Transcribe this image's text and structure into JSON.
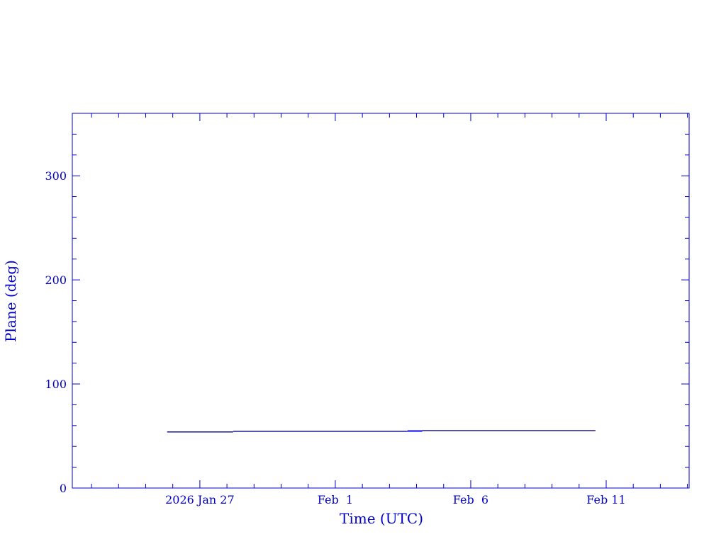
{
  "chart_data": {
    "type": "line",
    "xlabel": "Time (UTC)",
    "ylabel": "Plane (deg)",
    "xlim": [
      "2026-01-22T07:00",
      "2026-02-14T01:30"
    ],
    "ylim": [
      0,
      360
    ],
    "x_ticks": [
      {
        "date": "2026-01-27",
        "label": "2026 Jan 27"
      },
      {
        "date": "2026-02-01",
        "label": "Feb  1"
      },
      {
        "date": "2026-02-06",
        "label": "Feb  6"
      },
      {
        "date": "2026-02-11",
        "label": "Feb 11"
      }
    ],
    "y_ticks": [
      0,
      100,
      200,
      300
    ],
    "grid": false,
    "colors": {
      "axis": "#0000c8",
      "line": "#00008b",
      "highlight": "#0000ff"
    },
    "series": [
      {
        "segments": [
          {
            "x": [
              "2026-01-25T19:00",
              "2026-01-28T05:30"
            ],
            "y": [
              53.9,
              53.9
            ],
            "color": "#00008b"
          },
          {
            "x": [
              "2026-01-28T05:30",
              "2026-02-03T16:00"
            ],
            "y": [
              54.5,
              54.5
            ],
            "color": "#00008b"
          },
          {
            "x": [
              "2026-02-03T16:00",
              "2026-02-04T05:00"
            ],
            "y": [
              54.8,
              54.8
            ],
            "color": "#0000ff"
          },
          {
            "x": [
              "2026-02-04T05:00",
              "2026-02-10T14:30"
            ],
            "y": [
              55.2,
              55.2
            ],
            "color": "#00008b"
          }
        ]
      }
    ]
  }
}
